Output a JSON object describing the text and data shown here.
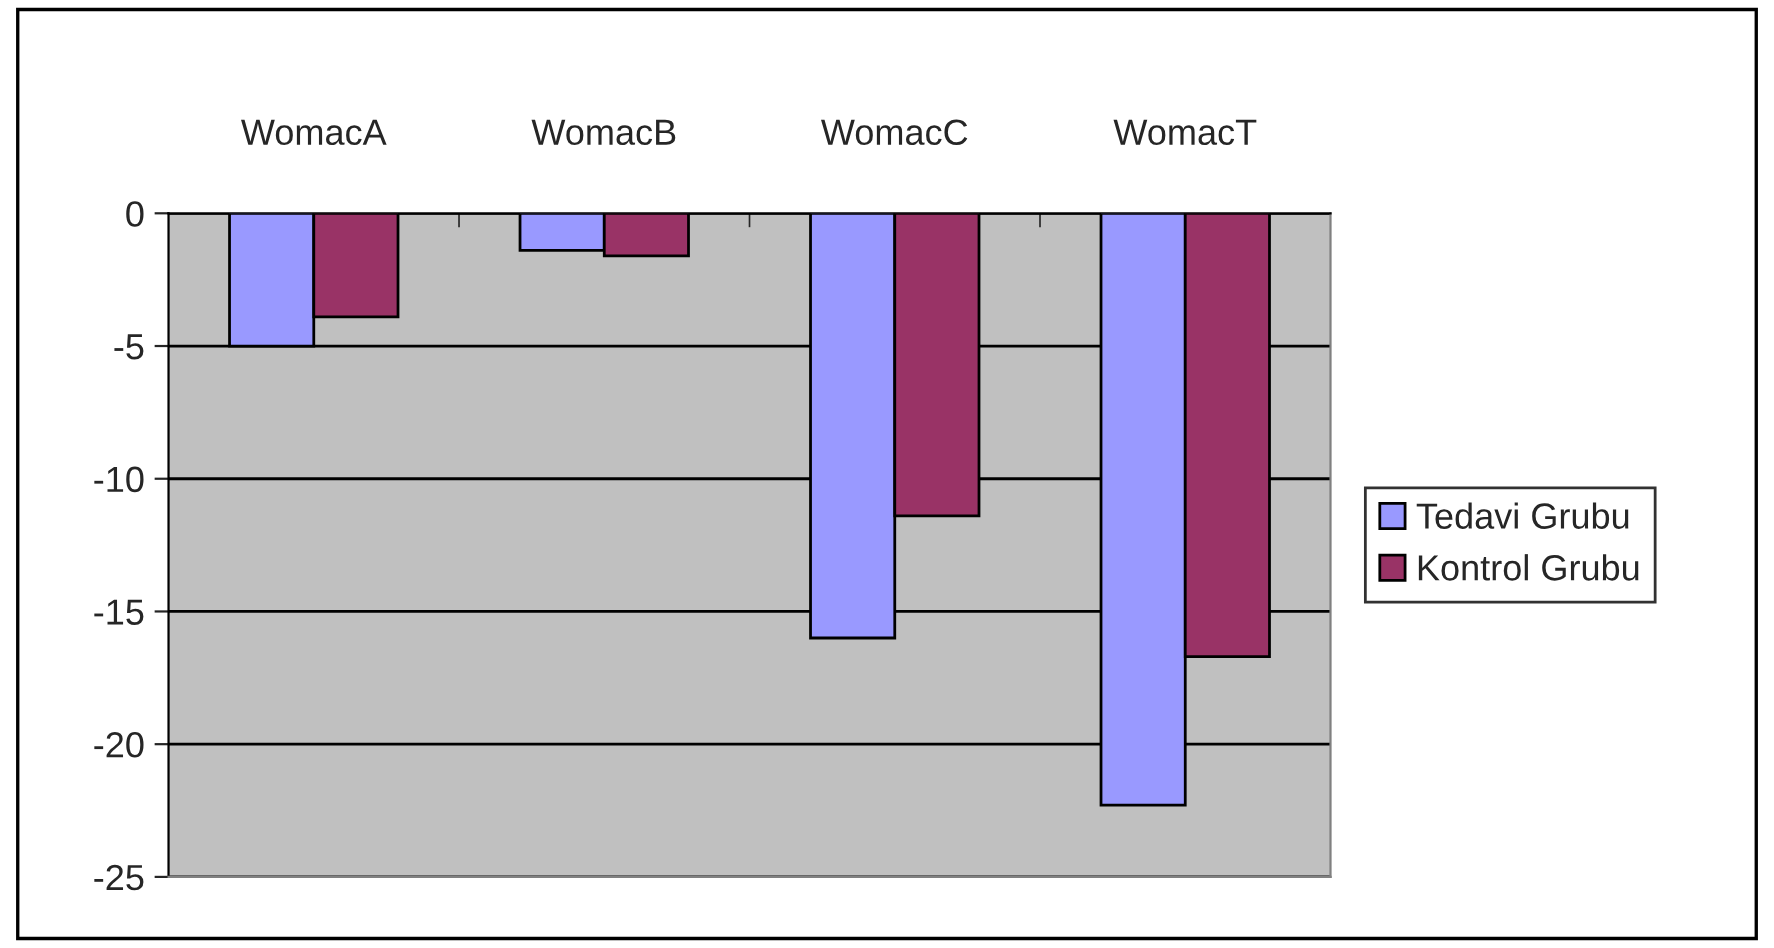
{
  "chart_data": {
    "type": "bar",
    "categories": [
      "WomacA",
      "WomacB",
      "WomacC",
      "WomacT"
    ],
    "series": [
      {
        "name": "Tedavi Grubu",
        "color": "#9999ff",
        "values": [
          -5.0,
          -1.4,
          -16.0,
          -22.3
        ]
      },
      {
        "name": "Kontrol Grubu",
        "color": "#993366",
        "values": [
          -3.9,
          -1.6,
          -11.4,
          -16.7
        ]
      }
    ],
    "ylim": [
      -25,
      0
    ],
    "yticks": [
      -25,
      -20,
      -15,
      -10,
      -5,
      0
    ],
    "grid": "y",
    "legend": "right"
  }
}
